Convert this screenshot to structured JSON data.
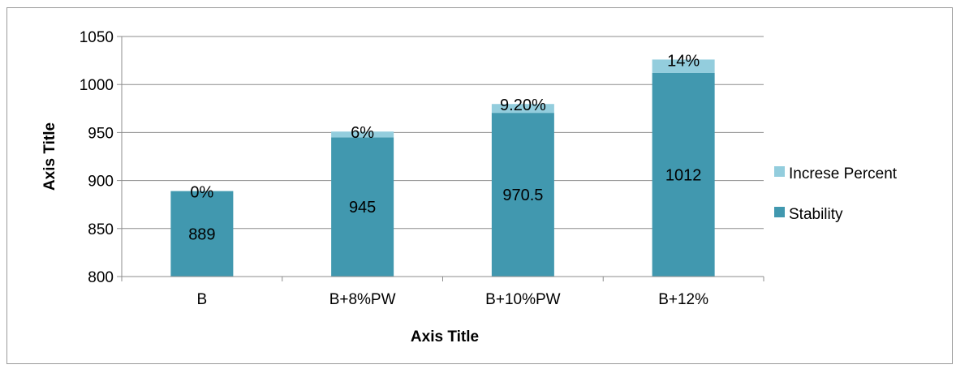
{
  "chart_data": {
    "type": "bar",
    "title": "",
    "xlabel": "Axis Title",
    "ylabel": "Axis Title",
    "ylim": [
      800,
      1050
    ],
    "yticks": [
      800,
      850,
      900,
      950,
      1000,
      1050
    ],
    "gridlines": true,
    "legend_position": "right",
    "categories": [
      "B",
      "B+8%PW",
      "B+10%PW",
      "B+12%"
    ],
    "series": [
      {
        "name": "Increse Percent",
        "color": "#93CDDD",
        "values": [
          0,
          6,
          9.2,
          14
        ],
        "labels": [
          "0%",
          "6%",
          "9.20%",
          "14%"
        ]
      },
      {
        "name": "Stability",
        "color": "#4198AF",
        "values": [
          889,
          945,
          970.5,
          1012
        ],
        "labels": [
          "889",
          "945",
          "970.5",
          "1012"
        ]
      }
    ]
  }
}
